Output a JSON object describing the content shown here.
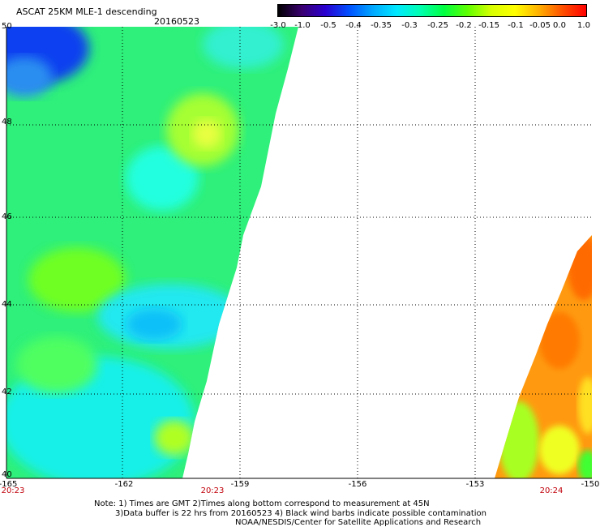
{
  "title": "ASCAT 25KM MLE-1 descending",
  "date": "20160523",
  "colorbar": {
    "labels": [
      "-3.0",
      "-1.0",
      "-0.5",
      "-0.4",
      "-0.35",
      "-0.3",
      "-0.25",
      "-0.2",
      "-0.15",
      "-0.1",
      "-0.05",
      "0.0",
      "1.0"
    ],
    "colors": [
      "#000000",
      "#3a0070",
      "#2a00d0",
      "#0050ff",
      "#00a8ff",
      "#00e8ff",
      "#00ffb0",
      "#00ff40",
      "#60ff00",
      "#d8ff00",
      "#ffff00",
      "#ffb000",
      "#ff5000",
      "#ff0000"
    ]
  },
  "axes": {
    "lat_labels": [
      "50",
      "48",
      "46",
      "44",
      "42",
      "40"
    ],
    "lon_labels": [
      "-165",
      "-162",
      "-159",
      "-156",
      "-153",
      "-150"
    ],
    "time_labels": [
      "20:23",
      "20:23",
      "20:24"
    ]
  },
  "notes": {
    "line1": "Note: 1) Times are GMT 2)Times along bottom correspond to measurement at 45N",
    "line2": "3)Data buffer is 22 hrs from 20160523 4) Black wind barbs indicate possible contamination",
    "line3": "NOAA/NESDIS/Center for Satellite Applications and Research"
  },
  "colors": {
    "time_label": "#c0000a",
    "left_swath_mean": "#2ef07a",
    "right_swath_mean": "#ff9a10"
  }
}
